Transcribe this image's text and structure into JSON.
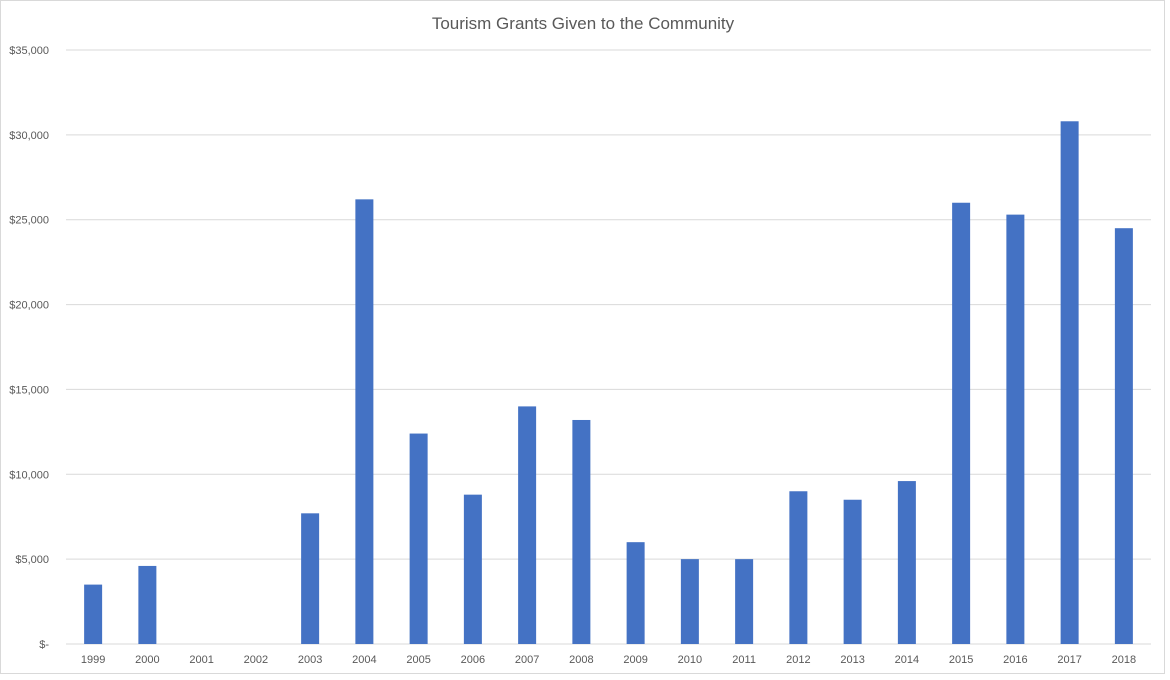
{
  "chart_data": {
    "type": "bar",
    "title": "Tourism Grants Given to the Community",
    "xlabel": "",
    "ylabel": "",
    "categories": [
      "1999",
      "2000",
      "2001",
      "2002",
      "2003",
      "2004",
      "2005",
      "2006",
      "2007",
      "2008",
      "2009",
      "2010",
      "2011",
      "2012",
      "2013",
      "2014",
      "2015",
      "2016",
      "2017",
      "2018"
    ],
    "values": [
      3500,
      4600,
      0,
      0,
      7700,
      26200,
      12400,
      8800,
      14000,
      13200,
      6000,
      5000,
      5000,
      9000,
      8500,
      9600,
      26000,
      25300,
      30800,
      24500
    ],
    "ylim": [
      0,
      35000
    ],
    "yticks": [
      0,
      5000,
      10000,
      15000,
      20000,
      25000,
      30000,
      35000
    ],
    "ytick_labels": [
      "$-",
      "$5,000",
      "$10,000",
      "$15,000",
      "$20,000",
      "$25,000",
      "$30,000",
      "$35,000"
    ],
    "grid": true,
    "legend": "none",
    "colors": {
      "bar": "#4472c4",
      "grid": "#d9d9d9",
      "text": "#595959"
    }
  }
}
